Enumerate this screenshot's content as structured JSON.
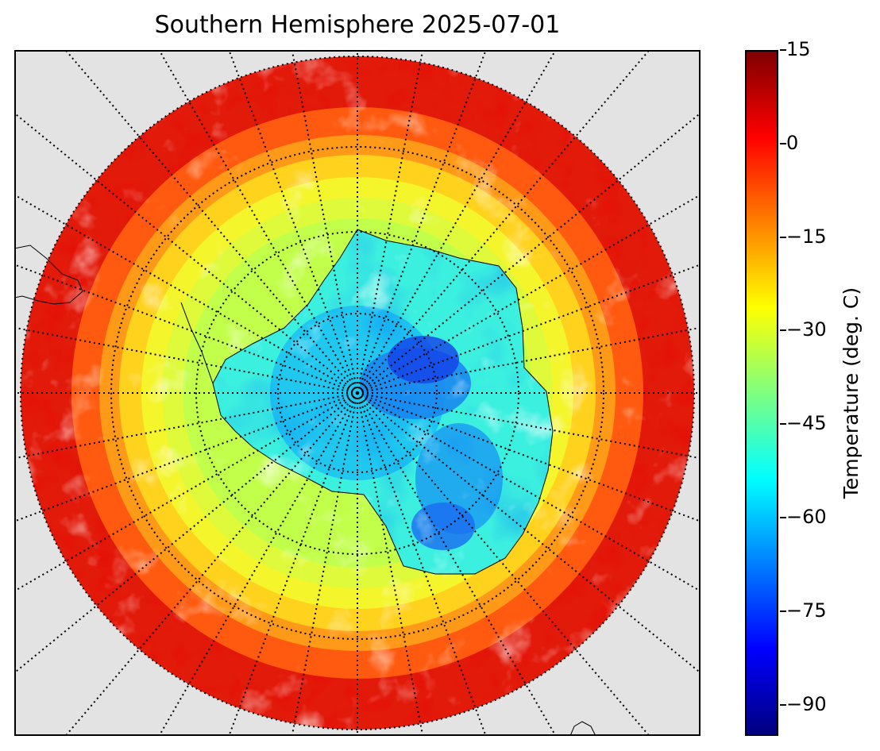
{
  "title": "Southern Hemisphere 2025-07-01",
  "colorbar": {
    "label": "Temperature (deg. C)",
    "ticks": [
      "15",
      "0",
      "−15",
      "−30",
      "−45",
      "−60",
      "−75",
      "−90"
    ],
    "tick_values": [
      15,
      0,
      -15,
      -30,
      -45,
      -60,
      -75,
      -90
    ],
    "range": [
      -95,
      15
    ],
    "colormap": "jet"
  },
  "map": {
    "projection": "south-polar-stereographic",
    "graticule": "dotted",
    "no_data_color": "#e3e3e3",
    "land_outline": "Antarctica"
  }
}
